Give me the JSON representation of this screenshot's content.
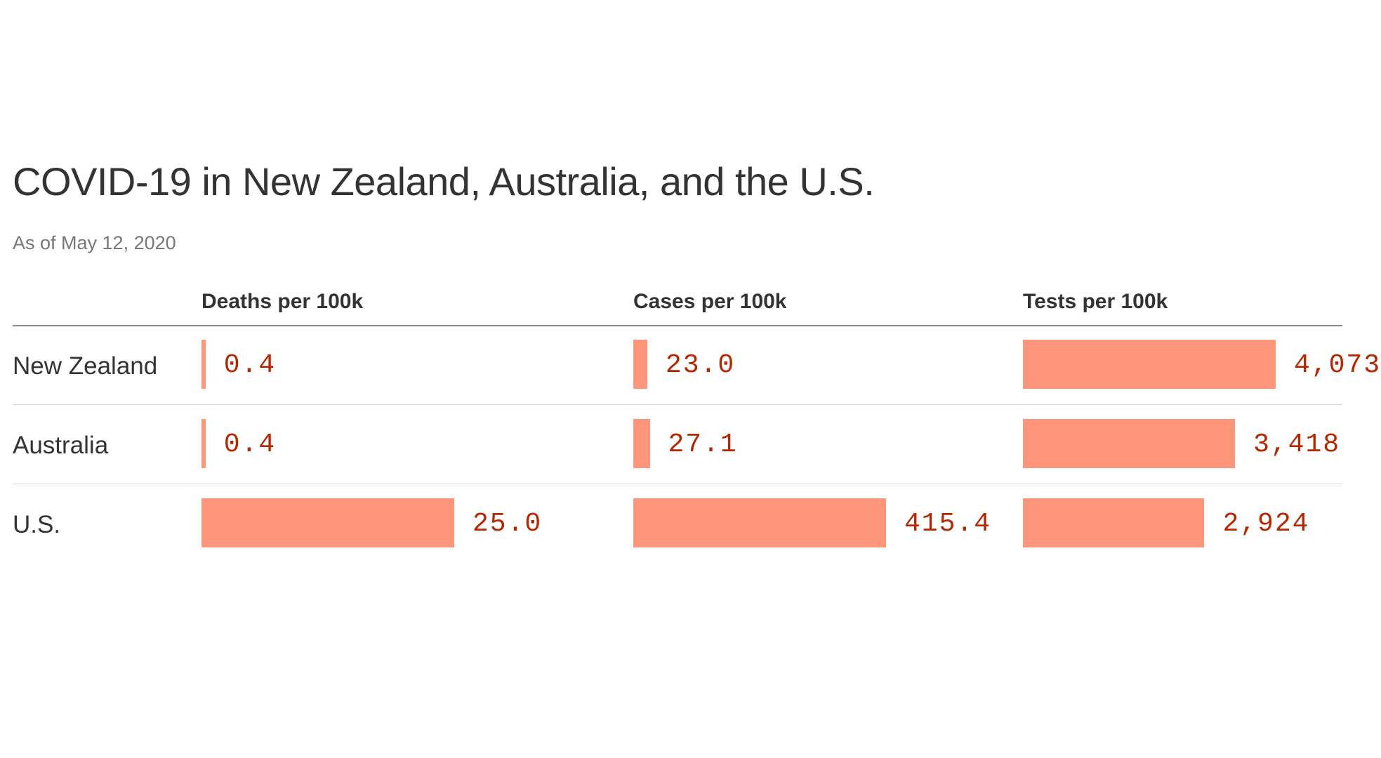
{
  "title": "COVID-19 in New Zealand, Australia, and the U.S.",
  "subtitle": "As of May 12, 2020",
  "colors": {
    "bar": "#ff957a",
    "value_text": "#b32800",
    "title_text": "#333333",
    "subtitle_text": "#777777"
  },
  "chart_data": {
    "type": "bar",
    "title": "COVID-19 in New Zealand, Australia, and the U.S.",
    "subtitle": "As of May 12, 2020",
    "categories": [
      "New Zealand",
      "Australia",
      "U.S."
    ],
    "series": [
      {
        "name": "Deaths per 100k",
        "values": [
          0.4,
          0.4,
          25.0
        ],
        "labels": [
          "0.4",
          "0.4",
          "25.0"
        ]
      },
      {
        "name": "Cases per 100k",
        "values": [
          23.0,
          27.1,
          415.4
        ],
        "labels": [
          "23.0",
          "27.1",
          "415.4"
        ]
      },
      {
        "name": "Tests per 100k",
        "values": [
          4073,
          3418,
          2924
        ],
        "labels": [
          "4,073",
          "3,418",
          "2,924"
        ]
      }
    ],
    "orientation": "horizontal",
    "grid": false
  }
}
